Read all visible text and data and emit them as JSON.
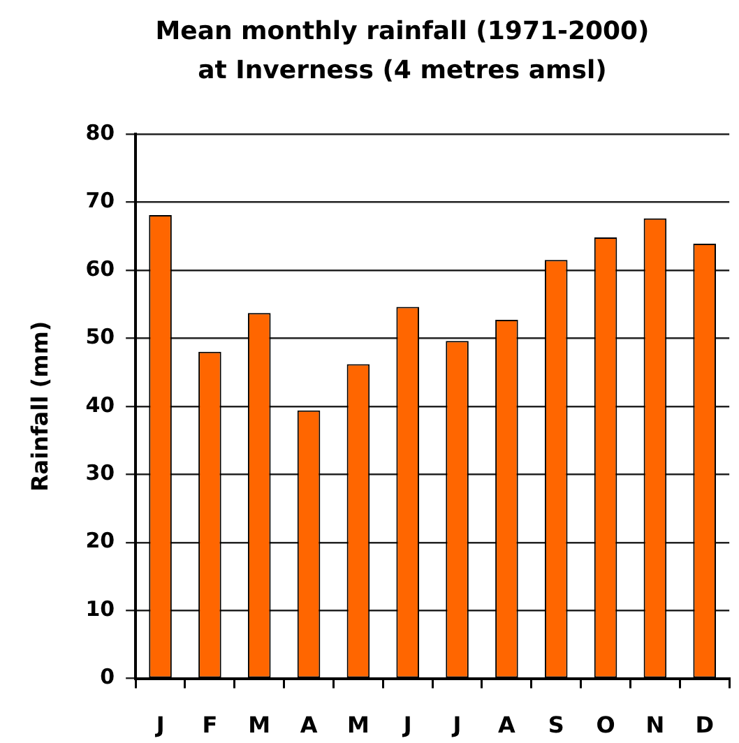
{
  "chart_data": {
    "type": "bar",
    "title": "Mean monthly rainfall (1971-2000) at Inverness (4 metres amsl)",
    "ylabel": "Rainfall (mm)",
    "categories": [
      "J",
      "F",
      "M",
      "A",
      "M",
      "J",
      "J",
      "A",
      "S",
      "O",
      "N",
      "D"
    ],
    "values": [
      68.1,
      48.0,
      53.7,
      39.4,
      46.2,
      54.6,
      49.6,
      52.7,
      61.5,
      64.8,
      67.6,
      63.9
    ],
    "color": "#ff6600",
    "ylim": [
      0,
      80
    ],
    "yticks": [
      0,
      10,
      20,
      30,
      40,
      50,
      60,
      70,
      80
    ],
    "grid": "y"
  }
}
